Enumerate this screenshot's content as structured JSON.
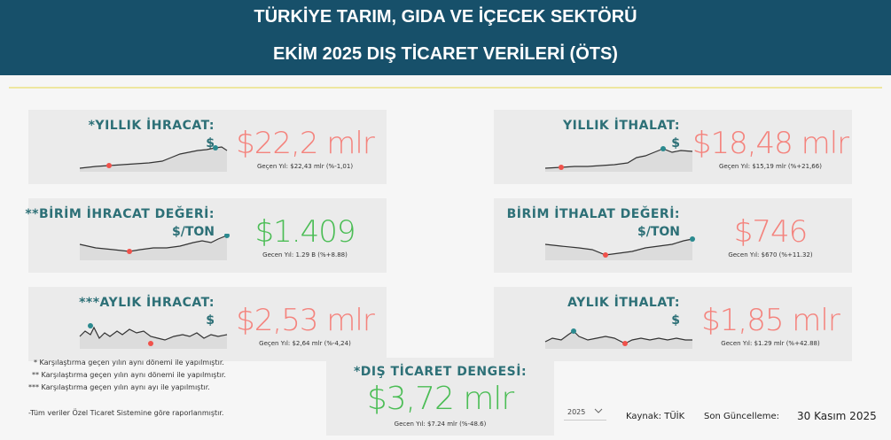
{
  "header": {
    "title_line1": "TÜRKİYE TARIM, GIDA VE İÇECEK SEKTÖRÜ",
    "title_line2": "EKİM 2025 DIŞ TİCARET VERİLERİ (ÖTS)"
  },
  "cards": [
    {
      "label": "*YILLIK İHRACAT:",
      "unit": "$",
      "value": "$22,2 mlr",
      "comparison": "Geçen Yıl: $22,43 mlr (%-1,01)",
      "color": "#f4837d"
    },
    {
      "label": "**BİRİM İHRACAT DEĞERİ:",
      "unit": "$/TON",
      "value": "$1.409",
      "comparison": "Gecen Yıl: 1.29 B (%+8.88)",
      "color": "#4bbd55"
    },
    {
      "label": "***AYLIK İHRACAT:",
      "unit": "$",
      "value": "$2,53 mlr",
      "comparison": "Geçen Yıl: $2,64 mlr (%-4,24)",
      "color": "#f4837d"
    },
    {
      "label": "YILLIK İTHALAT:",
      "unit": "$",
      "value": "$18,48 mlr",
      "comparison": "Geçen Yıl: $15,19 mlr (%+21,66)",
      "color": "#f4837d"
    },
    {
      "label": "BİRİM İTHALAT DEĞERİ:",
      "unit": "$/TON",
      "value": "$746",
      "comparison": "Gecen Yıl: $670 (%+11.32)",
      "color": "#f4837d"
    },
    {
      "label": "AYLIK İTHALAT:",
      "unit": "$",
      "value": "$1,85 mlr",
      "comparison": "Gecen Yıl: $1.29 mlr (%+42.88)",
      "color": "#f4837d"
    }
  ],
  "balance": {
    "label": "*DIŞ TİCARET DENGESİ:",
    "value": "$3,72 mlr",
    "comparison": "Gecen Yıl: $7.24 mlr (%-48.6)",
    "color": "#4bbd55"
  },
  "footnotes": [
    "* Karşılaştırma geçen yılın aynı dönemi ile yapılmıştır.",
    "** Karşılaştırma geçen yılın aynı dönemi ile yapılmıştır.",
    "*** Karşılaştırma geçen yılın aynı ayı ile yapılmıştır.",
    "-Tüm veriler Özel Ticaret Sistemine göre raporlanmıştır."
  ],
  "filter": {
    "year": "2025"
  },
  "source": "Kaynak: TÜİK",
  "updated_label": "Son Güncelleme:",
  "updated_date": "30 Kasım 2025"
}
